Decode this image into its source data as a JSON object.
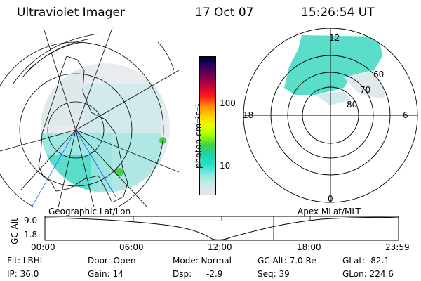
{
  "header": {
    "instrument": "Ultraviolet Imager",
    "date": "17 Oct 07",
    "time": "15:26:54 UT"
  },
  "colorbar": {
    "unit_label": "photon cm⁻²s⁻¹",
    "tick_100": "100",
    "tick_10": "10",
    "colors": [
      "#000033",
      "#330066",
      "#7a0050",
      "#c8003c",
      "#ff1a1a",
      "#ff8c00",
      "#ffd000",
      "#e8ff00",
      "#9cff00",
      "#3cd14a",
      "#18d6b0",
      "#28e0cc",
      "#8fe8e0",
      "#cfe8e8",
      "#e6e6e6"
    ]
  },
  "left_map": {
    "caption": "Geographic Lat/Lon"
  },
  "right_map": {
    "caption": "Apex MLat/MLT",
    "labels": {
      "mlt_12": "12",
      "mlt_18": "18",
      "mlt_6": "6",
      "mlt_0": "0",
      "lat_60": "60",
      "lat_70": "70",
      "lat_80": "80"
    }
  },
  "altitude_plot": {
    "axis_label": "GC Alt",
    "y_top": "9.0",
    "y_bottom": "1.8",
    "x_ticks": [
      "00:00",
      "06:00",
      "12:00",
      "18:00",
      "23:59"
    ],
    "marker_color": "#e00000"
  },
  "info": {
    "flt": "Flt: LBHL",
    "ip": "IP: 36.0",
    "door": "Door: Open",
    "gain": "Gain: 14",
    "mode": "Mode: Normal",
    "dsp_label": "Dsp:",
    "dsp_value": "-2.9",
    "gc_alt": "GC Alt: 7.0 Re",
    "seq": "Seq: 39",
    "glat": "GLat: -82.1",
    "glon": "GLon: 224.6"
  }
}
